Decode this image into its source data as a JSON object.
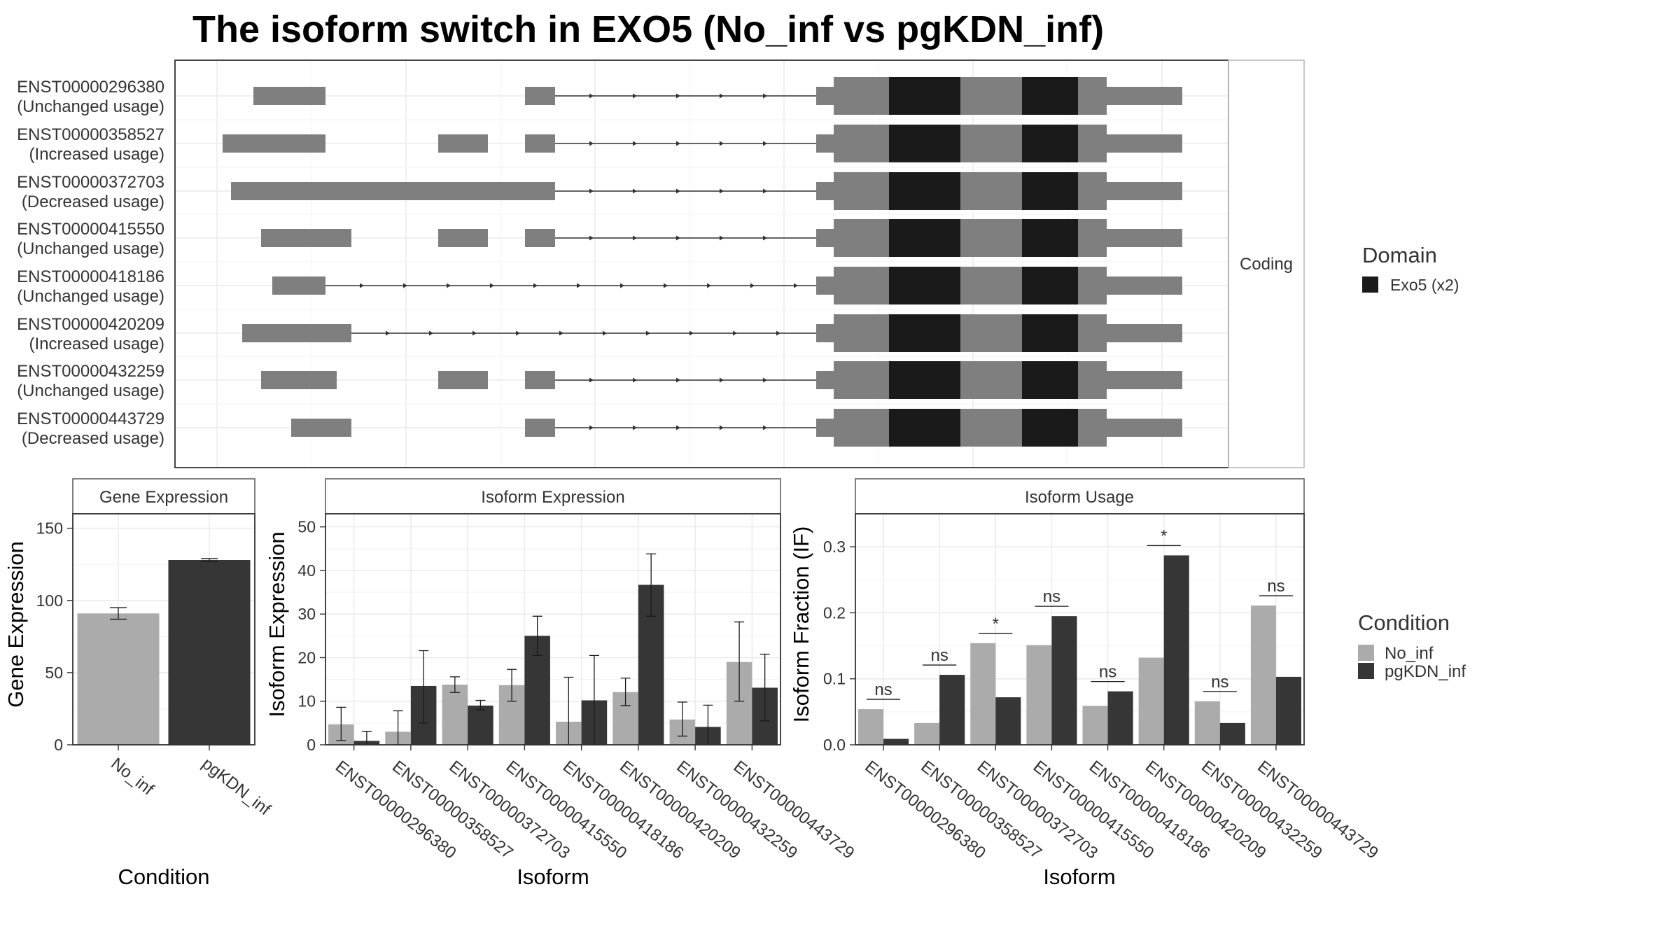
{
  "title": "The isoform switch in EXO5 (No_inf vs pgKDN_inf)",
  "colors": {
    "no_inf": "#ababab",
    "pgkdn_inf": "#363636",
    "exon": "#7f7f7f",
    "domain": "#1a1a1a"
  },
  "structure": {
    "facet_label": "Coding",
    "isoforms": [
      {
        "id": "ENST00000296380",
        "usage": "(Unchanged usage)"
      },
      {
        "id": "ENST00000358527",
        "usage": "(Increased usage)"
      },
      {
        "id": "ENST00000372703",
        "usage": "(Decreased usage)"
      },
      {
        "id": "ENST00000415550",
        "usage": "(Unchanged usage)"
      },
      {
        "id": "ENST00000418186",
        "usage": "(Unchanged usage)"
      },
      {
        "id": "ENST00000420209",
        "usage": "(Increased usage)"
      },
      {
        "id": "ENST00000432259",
        "usage": "(Unchanged usage)"
      },
      {
        "id": "ENST00000443729",
        "usage": "(Decreased usage)"
      }
    ]
  },
  "legend_domain": {
    "title": "Domain",
    "items": [
      {
        "label": "Exo5 (x2)",
        "color": "#1a1a1a"
      }
    ]
  },
  "legend_condition": {
    "title": "Condition",
    "items": [
      {
        "label": "No_inf",
        "color": "#ababab"
      },
      {
        "label": "pgKDN_inf",
        "color": "#363636"
      }
    ]
  },
  "chart_data": [
    {
      "type": "bar",
      "title": "Gene Expression",
      "xlabel": "Condition",
      "ylabel": "Gene Expression",
      "categories": [
        "No_inf",
        "pgKDN_inf"
      ],
      "values": [
        91,
        128
      ],
      "errors": [
        [
          87,
          95
        ],
        [
          127,
          129
        ]
      ],
      "ylim": [
        0,
        160
      ],
      "yticks": [
        0,
        50,
        100,
        150
      ]
    },
    {
      "type": "bar",
      "title": "Isoform Expression",
      "xlabel": "Isoform",
      "ylabel": "Isoform Expression",
      "categories": [
        "ENST00000296380",
        "ENST00000358527",
        "ENST00000372703",
        "ENST00000415550",
        "ENST00000418186",
        "ENST00000420209",
        "ENST00000432259",
        "ENST00000443729"
      ],
      "series": [
        {
          "name": "No_inf",
          "values": [
            4.7,
            3.0,
            13.8,
            13.7,
            5.3,
            12.1,
            5.8,
            19.0
          ],
          "errors": [
            [
              1,
              8.6
            ],
            [
              0,
              7.8
            ],
            [
              12,
              15.6
            ],
            [
              10,
              17.3
            ],
            [
              0,
              15.5
            ],
            [
              9,
              15.3
            ],
            [
              2,
              9.8
            ],
            [
              10,
              28.2
            ]
          ]
        },
        {
          "name": "pgKDN_inf",
          "values": [
            0.9,
            13.5,
            9.0,
            25.0,
            10.2,
            36.7,
            4.1,
            13.1
          ],
          "errors": [
            [
              0,
              3.1
            ],
            [
              5,
              21.6
            ],
            [
              8,
              10.2
            ],
            [
              20.5,
              29.5
            ],
            [
              0,
              20.5
            ],
            [
              29.5,
              43.8
            ],
            [
              0,
              9.1
            ],
            [
              5.5,
              20.8
            ]
          ]
        }
      ],
      "ylim": [
        0,
        53
      ],
      "yticks": [
        0,
        10,
        20,
        30,
        40,
        50
      ]
    },
    {
      "type": "bar",
      "title": "Isoform Usage",
      "xlabel": "Isoform",
      "ylabel": "Isoform Fraction (IF)",
      "categories": [
        "ENST00000296380",
        "ENST00000358527",
        "ENST00000372703",
        "ENST00000415550",
        "ENST00000418186",
        "ENST00000420209",
        "ENST00000432259",
        "ENST00000443729"
      ],
      "series": [
        {
          "name": "No_inf",
          "values": [
            0.054,
            0.033,
            0.154,
            0.151,
            0.059,
            0.132,
            0.066,
            0.211
          ]
        },
        {
          "name": "pgKDN_inf",
          "values": [
            0.009,
            0.106,
            0.072,
            0.195,
            0.081,
            0.287,
            0.033,
            0.103
          ]
        }
      ],
      "significance": [
        "ns",
        "ns",
        "*",
        "ns",
        "ns",
        "*",
        "ns",
        "ns"
      ],
      "ylim": [
        0,
        0.35
      ],
      "yticks": [
        0.0,
        0.1,
        0.2,
        0.3
      ],
      "ytick_labels": [
        "0.0",
        "0.1",
        "0.2",
        "0.3"
      ]
    }
  ]
}
